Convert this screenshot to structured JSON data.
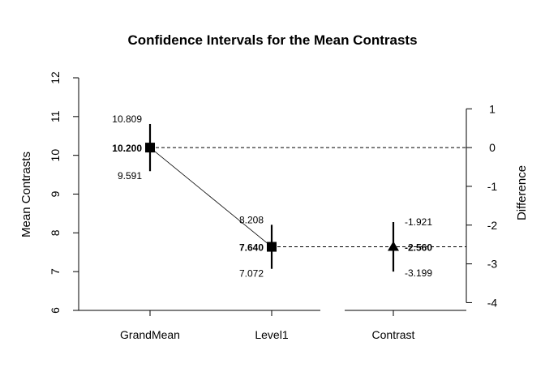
{
  "chart_data": {
    "type": "scatter",
    "title": "Confidence Intervals for the Mean Contrasts",
    "ylabel_left": "Mean Contrasts",
    "ylabel_right": "Difference",
    "ylim_left": [
      6,
      12
    ],
    "left_ticks": [
      "6",
      "7",
      "8",
      "9",
      "10",
      "11",
      "12"
    ],
    "ylim_right": [
      -4.2,
      1.8
    ],
    "right_ticks": [
      "-4",
      "-3",
      "-2",
      "-1",
      "0",
      "1"
    ],
    "categories": [
      "GrandMean",
      "Level1",
      "Contrast"
    ],
    "points": [
      {
        "category": "GrandMean",
        "axis": "left",
        "marker": "square",
        "mean": 10.2,
        "lower": 9.591,
        "upper": 10.809,
        "mean_label": "10.200",
        "lower_label": "9.591",
        "upper_label": "10.809"
      },
      {
        "category": "Level1",
        "axis": "left",
        "marker": "square",
        "mean": 7.64,
        "lower": 7.072,
        "upper": 8.208,
        "mean_label": "7.640",
        "lower_label": "7.072",
        "upper_label": "8.208"
      },
      {
        "category": "Contrast",
        "axis": "right",
        "marker": "triangle",
        "mean": -2.56,
        "lower": -3.199,
        "upper": -1.921,
        "mean_label": "-2.560",
        "lower_label": "-3.199",
        "upper_label": "-1.921"
      }
    ],
    "reference_lines": [
      {
        "axis": "right",
        "value": 0,
        "style": "dashed"
      },
      {
        "axis": "right",
        "value": -2.56,
        "style": "dashed"
      }
    ],
    "connector": {
      "from": "GrandMean",
      "to": "Level1"
    },
    "grid": false,
    "legend": "none"
  }
}
